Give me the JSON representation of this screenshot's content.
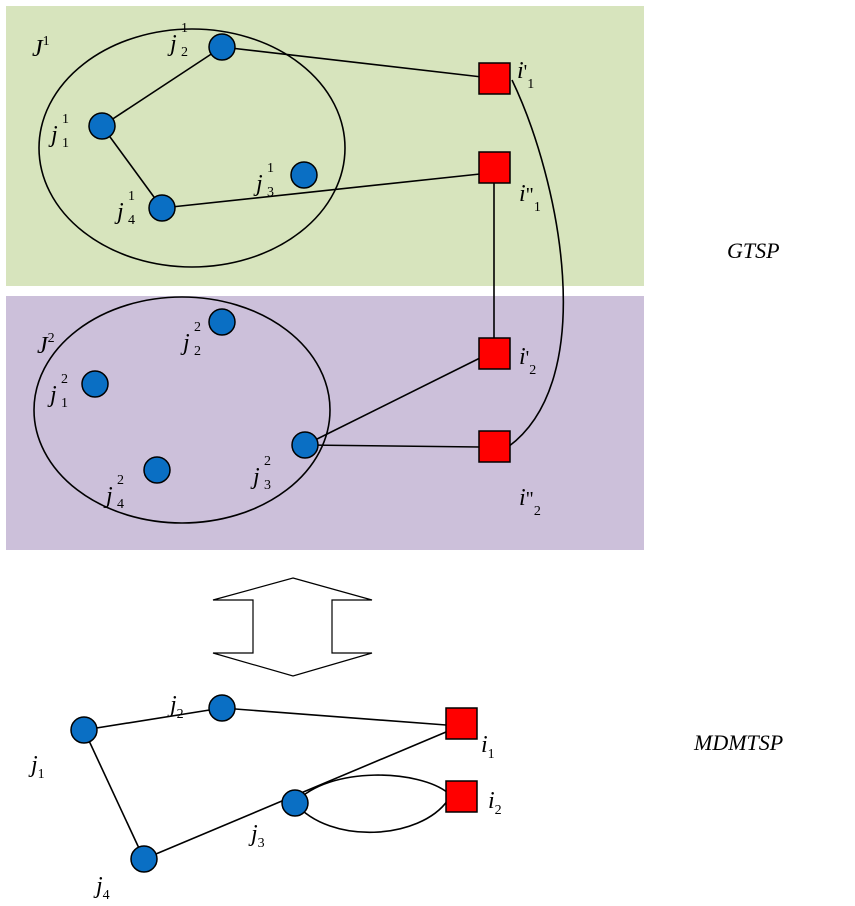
{
  "colors": {
    "gtsp_top_band": "#d7e4bd",
    "gtsp_bottom_band": "#ccc0da",
    "customer_node": "#0a6fc4",
    "depot_node": "#ff0000"
  },
  "diagram": {
    "gtsp_label": "GTSP",
    "mdmtsp_label": "MDMTSP",
    "clusters": [
      {
        "name": "J",
        "sup": "1"
      },
      {
        "name": "J",
        "sup": "2"
      }
    ],
    "gtsp_customers": [
      {
        "base": "j",
        "sub": "1",
        "sup": "1"
      },
      {
        "base": "j",
        "sub": "2",
        "sup": "1"
      },
      {
        "base": "j",
        "sub": "3",
        "sup": "1"
      },
      {
        "base": "j",
        "sub": "4",
        "sup": "1"
      },
      {
        "base": "j",
        "sub": "1",
        "sup": "2"
      },
      {
        "base": "j",
        "sub": "2",
        "sup": "2"
      },
      {
        "base": "j",
        "sub": "3",
        "sup": "2"
      },
      {
        "base": "j",
        "sub": "4",
        "sup": "2"
      }
    ],
    "gtsp_depots": [
      {
        "base": "i",
        "prime": "'",
        "sub": "1"
      },
      {
        "base": "i",
        "prime": "\"",
        "sub": "1"
      },
      {
        "base": "i",
        "prime": "'",
        "sub": "2"
      },
      {
        "base": "i",
        "prime": "\"",
        "sub": "2"
      }
    ],
    "mdmtsp_customers": [
      {
        "base": "j",
        "sub": "1"
      },
      {
        "base": "j",
        "sub": "2"
      },
      {
        "base": "j",
        "sub": "3"
      },
      {
        "base": "j",
        "sub": "4"
      }
    ],
    "mdmtsp_depots": [
      {
        "base": "i",
        "sub": "1"
      },
      {
        "base": "i",
        "sub": "2"
      }
    ]
  }
}
